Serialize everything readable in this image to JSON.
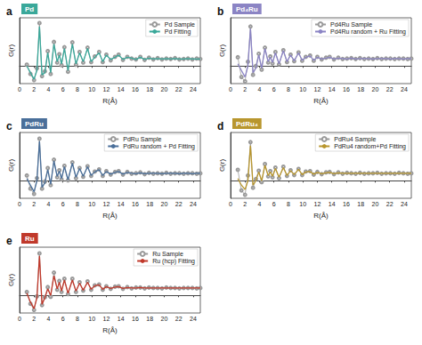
{
  "chart_data": [
    {
      "type": "line",
      "panel": "a",
      "title": "Pd",
      "xlabel": "R(Å)",
      "ylabel": "G(r)",
      "tick_labels": "x",
      "legend": "upper right",
      "xlim": [
        0,
        25
      ],
      "xticks": [
        0,
        2,
        4,
        6,
        8,
        10,
        12,
        14,
        16,
        18,
        20,
        22,
        24
      ],
      "ylim": [
        -4,
        11
      ],
      "color": "#3aa89a",
      "x": [
        1.0,
        1.5,
        2.0,
        2.4,
        2.75,
        3.1,
        3.5,
        3.9,
        4.3,
        4.75,
        5.2,
        5.5,
        5.8,
        6.2,
        6.7,
        7.3,
        7.8,
        8.3,
        8.8,
        9.4,
        9.9,
        10.4,
        11.0,
        11.5,
        12.0,
        12.6,
        13.2,
        13.7,
        14.3,
        14.9,
        15.5,
        16.1,
        16.7,
        17.3,
        17.9,
        18.5,
        19.1,
        19.7,
        20.3,
        20.9,
        21.5,
        22.1,
        22.7,
        23.3,
        23.9,
        24.5,
        25.0
      ],
      "series": [
        {
          "name": "Pd Sample",
          "color": "#9a9a9a",
          "marker": "circle",
          "values": [
            0.3,
            -1.8,
            -3.2,
            -0.5,
            9.8,
            -2.3,
            -1.2,
            3.4,
            -1.8,
            5.5,
            0.8,
            2.7,
            0.2,
            4.3,
            -1.3,
            5.4,
            0.3,
            3.2,
            0.8,
            4.2,
            0.9,
            2.2,
            3.2,
            0.9,
            2.6,
            1.3,
            2.1,
            2.6,
            1.4,
            2.1,
            1.7,
            1.5,
            2.1,
            1.4,
            1.9,
            1.5,
            1.8,
            1.5,
            1.7,
            1.6,
            1.8,
            1.5,
            1.6,
            1.7,
            1.5,
            1.7,
            1.6
          ]
        },
        {
          "name": "Pd Fitting",
          "color": "#3aa89a",
          "values": [
            0,
            -1.5,
            -3,
            -1,
            9,
            -2,
            -1.5,
            3,
            -1.5,
            5,
            1,
            2.5,
            0.5,
            4,
            -1,
            5,
            0.5,
            3,
            1,
            4,
            1,
            2,
            3,
            1,
            2.5,
            1.5,
            2,
            2.5,
            1.5,
            2,
            1.8,
            1.5,
            2,
            1.5,
            1.8,
            1.6,
            1.7,
            1.6,
            1.7,
            1.6,
            1.7,
            1.6,
            1.6,
            1.7,
            1.6,
            1.6,
            1.6
          ]
        }
      ]
    },
    {
      "type": "line",
      "panel": "b",
      "title": "Pd₄Ru",
      "xlabel": "R(Å)",
      "ylabel": "G(r)",
      "tick_labels": "x",
      "legend": "upper right",
      "xlim": [
        0,
        25
      ],
      "xticks": [
        0,
        2,
        4,
        6,
        8,
        10,
        12,
        14,
        16,
        18,
        20,
        22,
        24
      ],
      "ylim": [
        -4,
        11
      ],
      "color": "#8b84c4",
      "x": [
        1.0,
        1.5,
        2.0,
        2.4,
        2.75,
        3.1,
        3.5,
        3.9,
        4.3,
        4.75,
        5.2,
        5.5,
        5.8,
        6.2,
        6.7,
        7.3,
        7.8,
        8.3,
        8.8,
        9.4,
        9.9,
        10.4,
        11.0,
        11.5,
        12.0,
        12.6,
        13.2,
        13.7,
        14.3,
        14.9,
        15.5,
        16.1,
        16.7,
        17.3,
        17.9,
        18.5,
        19.1,
        19.7,
        20.3,
        20.9,
        21.5,
        22.1,
        22.7,
        23.3,
        23.9,
        24.5,
        25.0
      ],
      "series": [
        {
          "name": "Pd4Ru Sample",
          "color": "#9a9a9a",
          "marker": "circle",
          "values": [
            2,
            -2.5,
            -3.5,
            1,
            9,
            -2,
            0,
            2.8,
            -0.8,
            4.2,
            0.8,
            2.2,
            0.6,
            3.2,
            0.4,
            3.6,
            0.9,
            2.6,
            1.1,
            3.1,
            1.2,
            2.1,
            2.4,
            1.2,
            2.1,
            1.5,
            1.9,
            2.1,
            1.5,
            1.9,
            1.6,
            1.7,
            1.8,
            1.6,
            1.8,
            1.6,
            1.7,
            1.6,
            1.8,
            1.6,
            1.7,
            1.7,
            1.6,
            1.7,
            1.7,
            1.6,
            1.7
          ]
        },
        {
          "name": "Pd4Ru random + Ru Fitting",
          "color": "#8b84c4",
          "values": [
            0.5,
            -1,
            -2.5,
            0,
            8.5,
            -1.5,
            -0.5,
            2.5,
            -0.5,
            4,
            1,
            2,
            0.8,
            3,
            0.5,
            3.5,
            1,
            2.5,
            1.2,
            3,
            1.3,
            2,
            2.3,
            1.3,
            2,
            1.6,
            1.8,
            2,
            1.6,
            1.8,
            1.7,
            1.6,
            1.8,
            1.6,
            1.7,
            1.7,
            1.7,
            1.6,
            1.7,
            1.7,
            1.7,
            1.6,
            1.7,
            1.7,
            1.6,
            1.7,
            1.7
          ]
        }
      ]
    },
    {
      "type": "line",
      "panel": "c",
      "title": "PdRu",
      "xlabel": "R(Å)",
      "ylabel": "G(r)",
      "tick_labels": "x",
      "legend": "upper right",
      "xlim": [
        0,
        25
      ],
      "xticks": [
        0,
        2,
        4,
        6,
        8,
        10,
        12,
        14,
        16,
        18,
        20,
        22,
        24
      ],
      "ylim": [
        -4,
        11
      ],
      "color": "#4a6f9a",
      "x": [
        1.0,
        1.5,
        2.0,
        2.4,
        2.75,
        3.1,
        3.5,
        3.9,
        4.3,
        4.75,
        5.2,
        5.5,
        5.8,
        6.2,
        6.7,
        7.3,
        7.8,
        8.3,
        8.8,
        9.4,
        9.9,
        10.4,
        11.0,
        11.5,
        12.0,
        12.6,
        13.2,
        13.7,
        14.3,
        14.9,
        15.5,
        16.1,
        16.7,
        17.3,
        17.9,
        18.5,
        19.1,
        19.7,
        20.3,
        20.9,
        21.5,
        22.1,
        22.7,
        23.3,
        23.9,
        24.5,
        25.0
      ],
      "series": [
        {
          "name": "PdRu Sample",
          "color": "#9a9a9a",
          "marker": "circle",
          "values": [
            1.2,
            -1.8,
            -3,
            0.6,
            9.6,
            -1.8,
            -0.2,
            2.9,
            -1,
            4.8,
            0.8,
            2.4,
            0.3,
            3.4,
            0.1,
            4.2,
            0.6,
            2.9,
            0.9,
            3.3,
            1.1,
            2.1,
            2.6,
            1.1,
            2.2,
            1.4,
            2,
            2.2,
            1.4,
            2,
            1.6,
            1.7,
            1.9,
            1.5,
            1.8,
            1.6,
            1.7,
            1.6,
            1.8,
            1.6,
            1.7,
            1.7,
            1.6,
            1.7,
            1.7,
            1.6,
            1.7
          ]
        },
        {
          "name": "PdRu random + Pd Fitting",
          "color": "#4a6f9a",
          "values": [
            0.5,
            -1,
            -2.5,
            0,
            9,
            -1.5,
            -0.5,
            2.5,
            -0.8,
            4.5,
            1,
            2.2,
            0.5,
            3.2,
            0.2,
            4,
            0.8,
            2.8,
            1,
            3.2,
            1.2,
            2,
            2.5,
            1.2,
            2.1,
            1.5,
            1.9,
            2.1,
            1.5,
            1.9,
            1.7,
            1.6,
            1.8,
            1.6,
            1.7,
            1.7,
            1.7,
            1.6,
            1.7,
            1.7,
            1.7,
            1.6,
            1.7,
            1.7,
            1.6,
            1.7,
            1.7
          ]
        }
      ]
    },
    {
      "type": "line",
      "panel": "d",
      "title": "PdRu₄",
      "xlabel": "R(Å)",
      "ylabel": "G(r)",
      "tick_labels": "x",
      "legend": "upper right",
      "xlim": [
        0,
        25
      ],
      "xticks": [
        0,
        2,
        4,
        6,
        8,
        10,
        12,
        14,
        16,
        18,
        20,
        22,
        24
      ],
      "ylim": [
        -4,
        11
      ],
      "color": "#b8962e",
      "x": [
        1.0,
        1.5,
        2.0,
        2.4,
        2.75,
        3.1,
        3.5,
        3.9,
        4.3,
        4.75,
        5.2,
        5.5,
        5.8,
        6.2,
        6.7,
        7.3,
        7.8,
        8.3,
        8.8,
        9.4,
        9.9,
        10.4,
        11.0,
        11.5,
        12.0,
        12.6,
        13.2,
        13.7,
        14.3,
        14.9,
        15.5,
        16.1,
        16.7,
        17.3,
        17.9,
        18.5,
        19.1,
        19.7,
        20.3,
        20.9,
        21.5,
        22.1,
        22.7,
        23.3,
        23.9,
        24.5,
        25.0
      ],
      "series": [
        {
          "name": "PdRu4 Sample",
          "color": "#9a9a9a",
          "marker": "circle",
          "values": [
            2.5,
            -2.2,
            -3.2,
            1.2,
            8.8,
            -1.6,
            0.4,
            2.3,
            -0.3,
            3.8,
            1,
            2.2,
            0.8,
            3,
            0.6,
            3.2,
            1.1,
            2.4,
            1.3,
            2.7,
            1.3,
            2.1,
            2.2,
            1.4,
            2,
            1.5,
            1.9,
            2,
            1.5,
            1.9,
            1.6,
            1.8,
            1.7,
            1.6,
            1.8,
            1.6,
            1.7,
            1.7,
            1.8,
            1.6,
            1.7,
            1.7,
            1.6,
            1.8,
            1.7,
            1.6,
            1.7
          ]
        },
        {
          "name": "PdRu4 random+Pd Fitting",
          "color": "#b8962e",
          "values": [
            0.5,
            -1,
            -2,
            0,
            8,
            -1,
            0,
            2,
            0,
            3.5,
            1.2,
            2,
            1,
            2.8,
            0.8,
            3,
            1.2,
            2.3,
            1.4,
            2.6,
            1.4,
            2,
            2.1,
            1.5,
            1.9,
            1.6,
            1.8,
            1.9,
            1.6,
            1.8,
            1.7,
            1.7,
            1.7,
            1.7,
            1.7,
            1.7,
            1.7,
            1.7,
            1.7,
            1.7,
            1.7,
            1.7,
            1.7,
            1.7,
            1.7,
            1.7,
            1.7
          ]
        }
      ]
    },
    {
      "type": "line",
      "panel": "e",
      "title": "Ru",
      "xlabel": "R(Å)",
      "ylabel": "G(r)",
      "tick_labels": "x",
      "legend": "upper right",
      "xlim": [
        0,
        25
      ],
      "xticks": [
        0,
        2,
        4,
        6,
        8,
        10,
        12,
        14,
        16,
        18,
        20,
        22,
        24
      ],
      "ylim": [
        -4,
        11
      ],
      "color": "#c0392b",
      "x": [
        1.0,
        1.5,
        2.0,
        2.4,
        2.75,
        3.1,
        3.5,
        3.9,
        4.3,
        4.75,
        5.2,
        5.5,
        5.8,
        6.2,
        6.7,
        7.3,
        7.8,
        8.3,
        8.8,
        9.4,
        9.9,
        10.4,
        11.0,
        11.5,
        12.0,
        12.6,
        13.2,
        13.7,
        14.3,
        14.9,
        15.5,
        16.1,
        16.7,
        17.3,
        17.9,
        18.5,
        19.1,
        19.7,
        20.3,
        20.9,
        21.5,
        22.1,
        22.7,
        23.3,
        23.9,
        24.5,
        25.0
      ],
      "series": [
        {
          "name": "Ru Sample",
          "color": "#9a9a9a",
          "marker": "circle",
          "values": [
            0.8,
            -1.9,
            -3.3,
            -0.2,
            9.6,
            -2.2,
            -0.4,
            1.9,
            -0.3,
            5.2,
            1.3,
            3.3,
            0.8,
            3.8,
            0.3,
            3.8,
            0.8,
            3,
            1.1,
            3.2,
            1.3,
            2.3,
            2.5,
            1.3,
            2.1,
            1.5,
            2,
            2.1,
            1.5,
            1.9,
            1.6,
            1.8,
            1.8,
            1.6,
            1.8,
            1.7,
            1.7,
            1.6,
            1.8,
            1.7,
            1.7,
            1.6,
            1.7,
            1.7,
            1.7,
            1.6,
            1.7
          ]
        },
        {
          "name": "Ru (hcp) Fitting",
          "color": "#c0392b",
          "values": [
            0.5,
            -1.5,
            -3,
            -0.5,
            9,
            -2,
            -0.5,
            1.5,
            0,
            4.5,
            1.5,
            3,
            1,
            3.5,
            0.5,
            3.5,
            1,
            2.8,
            1.2,
            3,
            1.4,
            2.2,
            2.4,
            1.4,
            2,
            1.6,
            1.9,
            2,
            1.6,
            1.8,
            1.7,
            1.7,
            1.8,
            1.7,
            1.7,
            1.7,
            1.7,
            1.7,
            1.7,
            1.7,
            1.7,
            1.7,
            1.7,
            1.7,
            1.7,
            1.7,
            1.7
          ]
        }
      ]
    }
  ]
}
